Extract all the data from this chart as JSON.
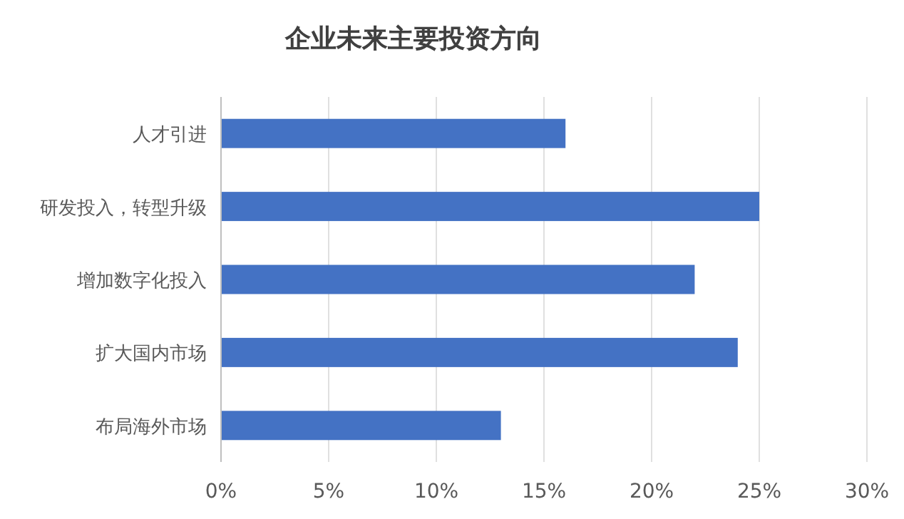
{
  "chart_data": {
    "type": "bar",
    "orientation": "horizontal",
    "title": "企业未来主要投资方向",
    "categories": [
      "人才引进",
      "研发投入，转型升级",
      "增加数字化投入",
      "扩大国内市场",
      "布局海外市场"
    ],
    "values": [
      16,
      25,
      22,
      24,
      13
    ],
    "color": "#4472c4",
    "xlim": [
      0,
      30
    ],
    "xticks": [
      {
        "value": 0,
        "label": "0%"
      },
      {
        "value": 5,
        "label": "5%"
      },
      {
        "value": 10,
        "label": "10%"
      },
      {
        "value": 15,
        "label": "15%"
      },
      {
        "value": 20,
        "label": "20%"
      },
      {
        "value": 25,
        "label": "25%"
      },
      {
        "value": 30,
        "label": "30%"
      }
    ],
    "grid": "x"
  }
}
